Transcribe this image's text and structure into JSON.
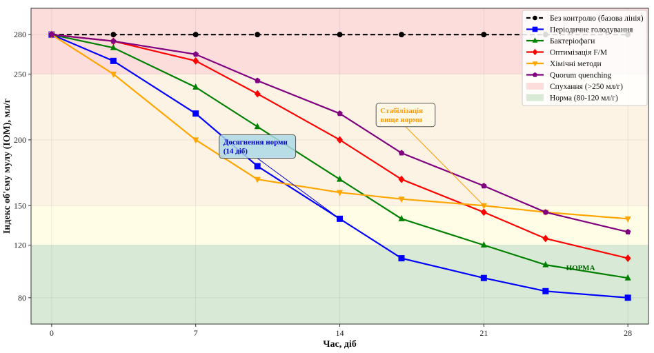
{
  "chart_data": {
    "type": "line",
    "title": "",
    "xlabel": "Час, діб",
    "ylabel": "Індекс об'єму мулу (ІОМ), мл/г",
    "xlim": [
      -1,
      29
    ],
    "ylim": [
      60,
      300
    ],
    "xticks": [
      0,
      7,
      14,
      21,
      28
    ],
    "yticks": [
      80,
      120,
      150,
      200,
      250,
      280
    ],
    "x": [
      0,
      3,
      7,
      10,
      14,
      17,
      21,
      24,
      28
    ],
    "series": [
      {
        "name": "Без контролю (базова лінія)",
        "color": "#000000",
        "marker": "circle",
        "dashed": true,
        "values": [
          280,
          280,
          280,
          280,
          280,
          280,
          280,
          280,
          280
        ]
      },
      {
        "name": "Періодичне голодування",
        "color": "#0000ff",
        "marker": "square",
        "values": [
          280,
          260,
          220,
          180,
          140,
          110,
          95,
          85,
          80
        ]
      },
      {
        "name": "Бактеріофаги",
        "color": "#008000",
        "marker": "triangle-up",
        "values": [
          280,
          270,
          240,
          210,
          170,
          140,
          120,
          105,
          95
        ]
      },
      {
        "name": "Оптимізація F/M",
        "color": "#ff0000",
        "marker": "diamond",
        "values": [
          280,
          275,
          260,
          235,
          200,
          170,
          145,
          125,
          110
        ]
      },
      {
        "name": "Хімічні методи",
        "color": "#ffa500",
        "marker": "triangle-down",
        "values": [
          280,
          250,
          200,
          170,
          160,
          155,
          150,
          145,
          140
        ]
      },
      {
        "name": "Quorum quenching",
        "color": "#800080",
        "marker": "pentagon",
        "values": [
          280,
          275,
          265,
          245,
          220,
          190,
          165,
          145,
          130
        ]
      }
    ],
    "bands": [
      {
        "name": "Спухання (>250 мл/г)",
        "from": 250,
        "to": 300,
        "color": "#fddcdc",
        "legend": true
      },
      {
        "name": "",
        "from": 150,
        "to": 250,
        "color": "#fdf3e4",
        "legend": false
      },
      {
        "name": "",
        "from": 120,
        "to": 150,
        "color": "#fffde5",
        "legend": false
      },
      {
        "name": "Норма (80-120 мл/г)",
        "from": 60,
        "to": 120,
        "color": "#d8ead6",
        "legend": true
      }
    ],
    "legend_position": "top-right",
    "grid": true,
    "annotations": [
      {
        "text_lines": [
          "Досягнення норми",
          "(14 діб)"
        ],
        "target": [
          14,
          140
        ],
        "color": "#0000cc",
        "box_color": "#add8e6",
        "anchor": [
          10,
          186
        ]
      },
      {
        "text_lines": [
          "Стабілізація",
          "вище норми"
        ],
        "target": [
          21,
          150
        ],
        "color": "#ff9900",
        "box_color": "#fff8e7",
        "anchor": [
          17.2,
          210
        ]
      },
      {
        "text_lines": [
          "НОРМА"
        ],
        "color": "#006400",
        "at": [
          25.7,
          101
        ]
      }
    ],
    "legend_entries": [
      "Без контролю (базова лінія)",
      "Періодичне голодування",
      "Бактеріофаги",
      "Оптимізація F/M",
      "Хімічні методи",
      "Quorum quenching",
      "Норма (80-120 мл/г)",
      "Спухання (>250 мл/г)"
    ]
  }
}
